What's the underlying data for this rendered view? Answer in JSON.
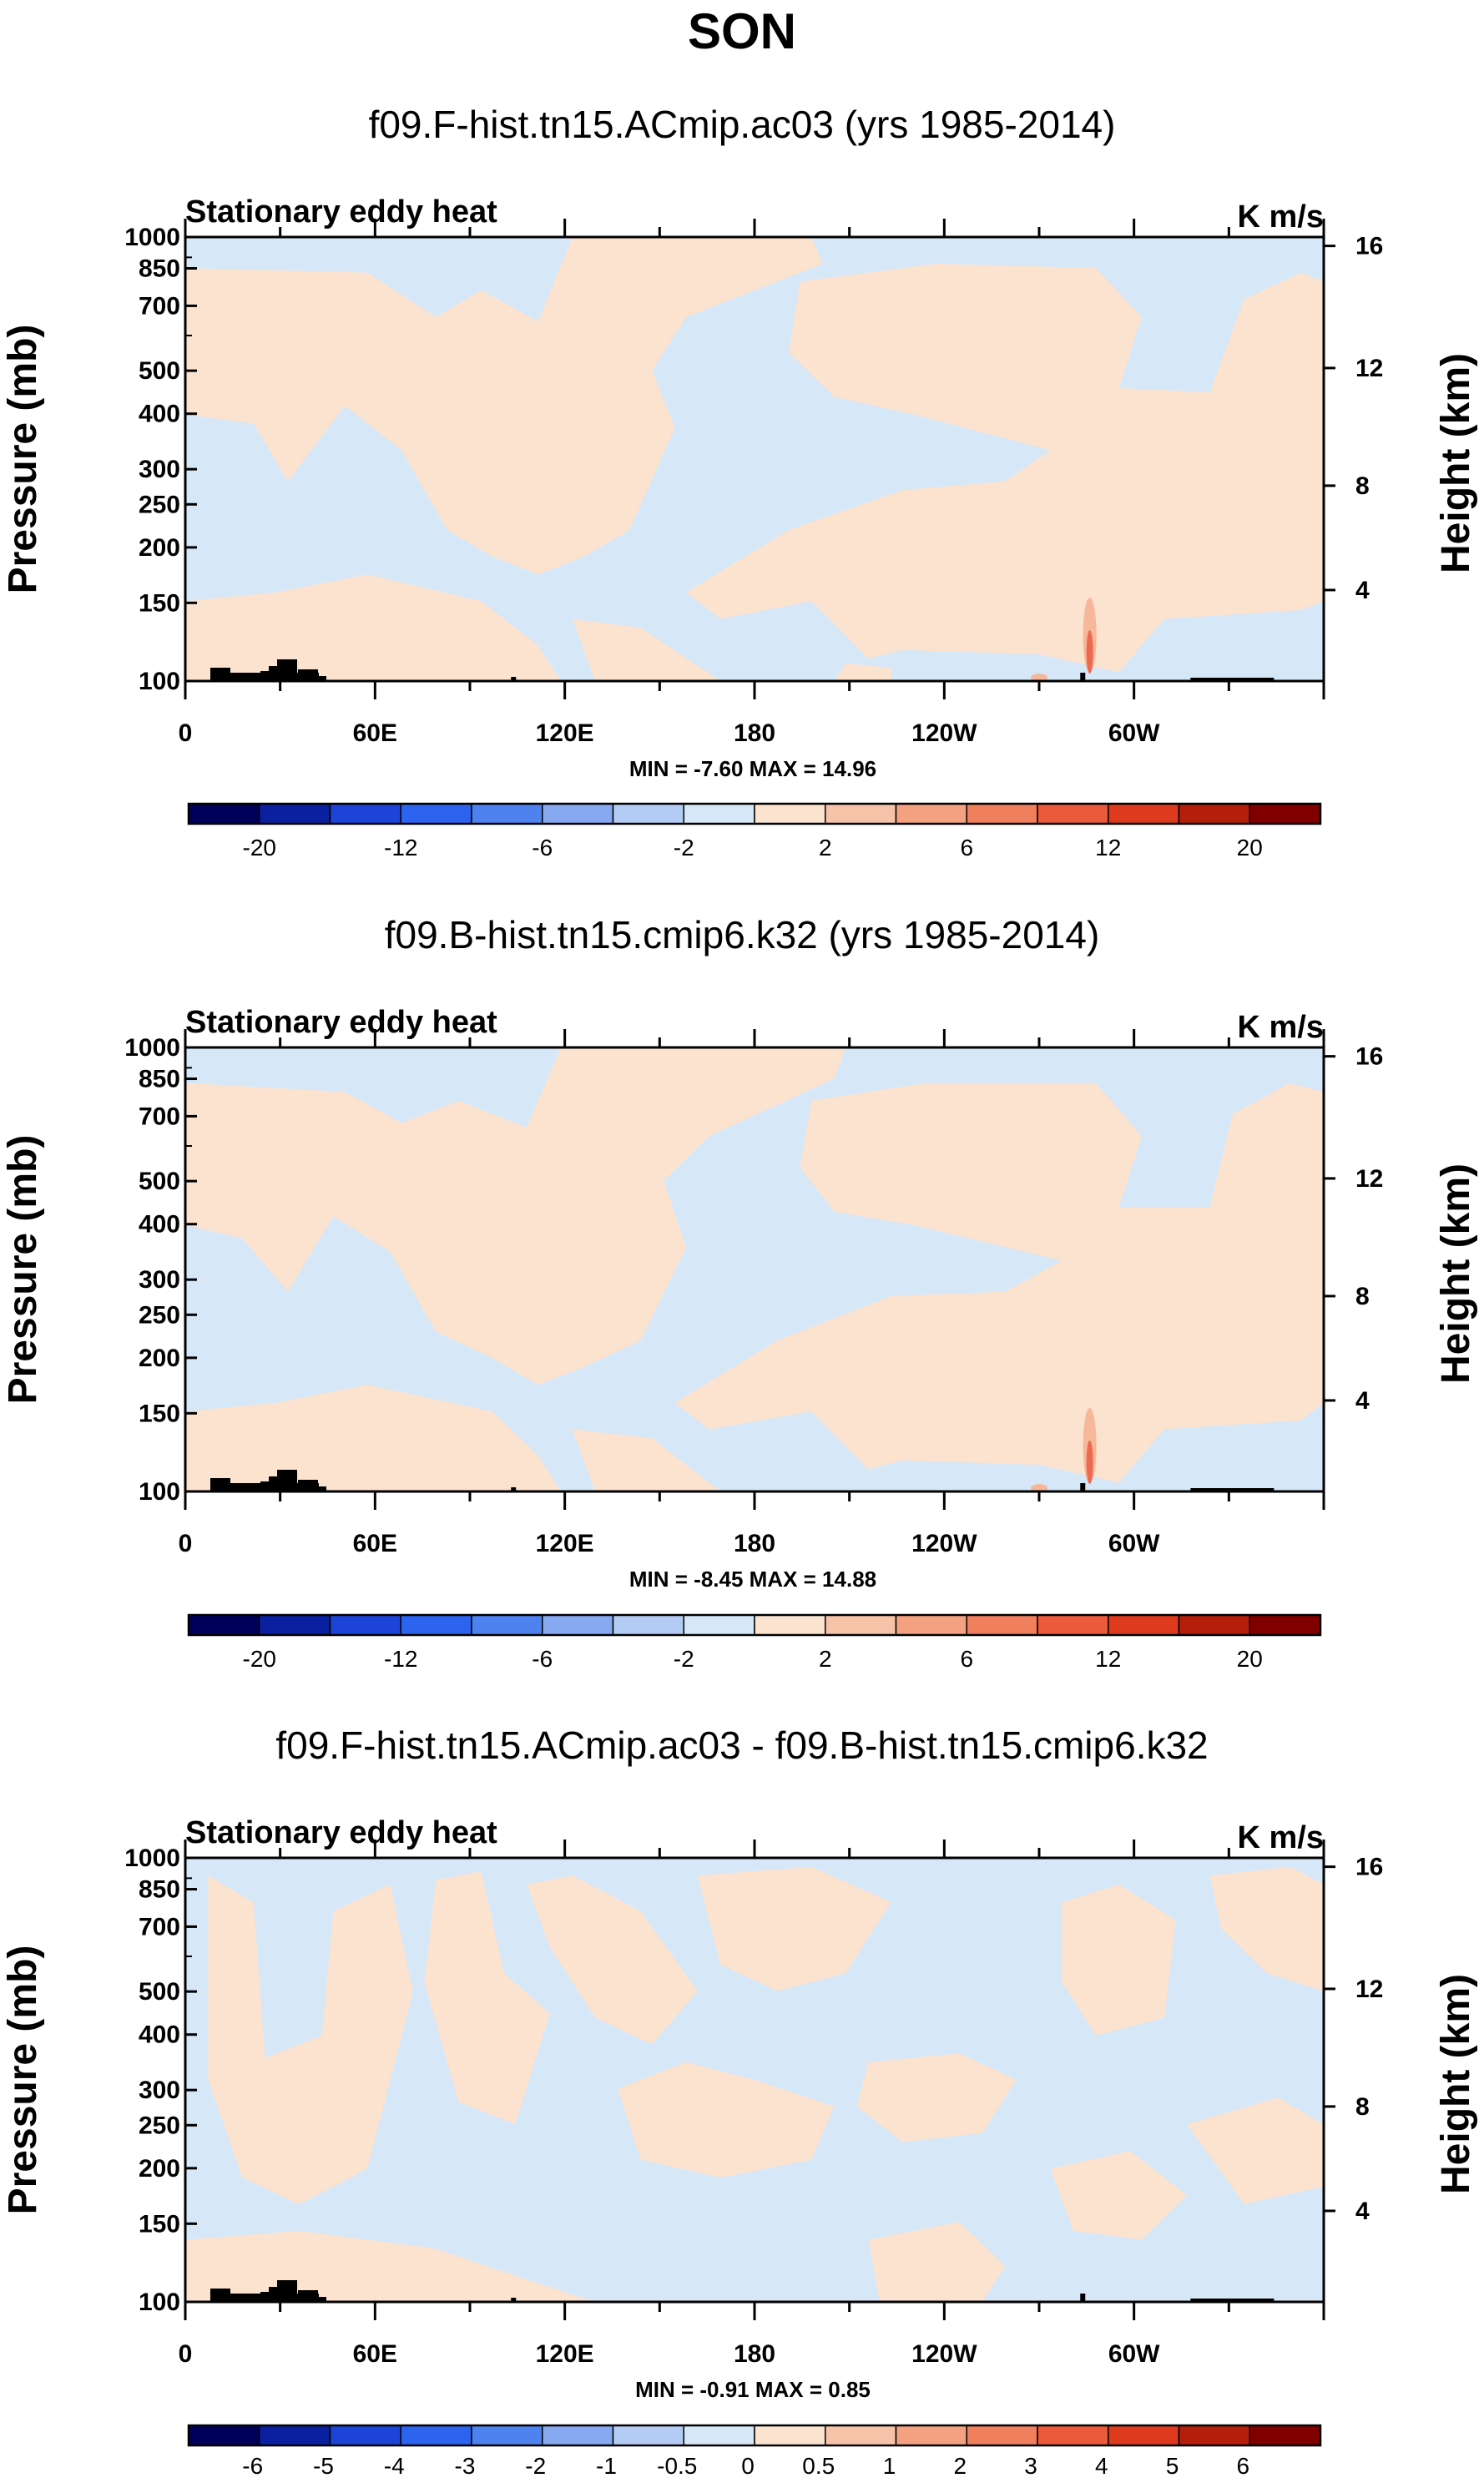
{
  "figure_title": "SON",
  "colors": {
    "blue_light": "#d6e7f8",
    "peach_light": "#fbe3cf",
    "peach_mid": "#f6b79a",
    "orange_red": "#ec6a4f",
    "topography": "#000000",
    "frame": "#000000"
  },
  "chart_data": [
    {
      "type": "heatmap",
      "title": "f09.F-hist.tn15.ACmip.ac03 (yrs 1985-2014)",
      "left_label": "Stationary eddy heat",
      "right_label": "K m/s",
      "ylabel": "Pressure (mb)",
      "ylabel_right": "Height (km)",
      "xlabel": "",
      "pressure_ticks": [
        "100",
        "150",
        "200",
        "250",
        "300",
        "400",
        "500",
        "700",
        "850",
        "1000"
      ],
      "height_ticks": [
        "16",
        "12",
        "8",
        "4"
      ],
      "x_ticks": [
        "0",
        "60E",
        "120E",
        "180",
        "120W",
        "60W"
      ],
      "x_tick_longitudes": [
        0,
        60,
        120,
        180,
        240,
        300
      ],
      "xlim": [
        0,
        360
      ],
      "ylim_mb": [
        1000,
        100
      ],
      "stats_text": "MIN = -7.60  MAX = 14.96",
      "min": -7.6,
      "max": 14.96,
      "colorbar_labels": [
        "-20",
        "-12",
        "-6",
        "-2",
        "2",
        "6",
        "12",
        "20"
      ],
      "colorbar_colors": [
        "#00005a",
        "#0b20a0",
        "#1c45d8",
        "#2c63ef",
        "#4d82ef",
        "#86a9f1",
        "#b4ccf5",
        "#d6e7f8",
        "#fbe3cf",
        "#f6c3a8",
        "#f3a181",
        "#f07f5d",
        "#ec5a3c",
        "#de3a1e",
        "#b41e0a",
        "#800000"
      ]
    },
    {
      "type": "heatmap",
      "title": "f09.B-hist.tn15.cmip6.k32 (yrs 1985-2014)",
      "left_label": "Stationary eddy heat",
      "right_label": "K m/s",
      "ylabel": "Pressure (mb)",
      "ylabel_right": "Height (km)",
      "xlabel": "",
      "pressure_ticks": [
        "100",
        "150",
        "200",
        "250",
        "300",
        "400",
        "500",
        "700",
        "850",
        "1000"
      ],
      "height_ticks": [
        "16",
        "12",
        "8",
        "4"
      ],
      "x_ticks": [
        "0",
        "60E",
        "120E",
        "180",
        "120W",
        "60W"
      ],
      "x_tick_longitudes": [
        0,
        60,
        120,
        180,
        240,
        300
      ],
      "xlim": [
        0,
        360
      ],
      "ylim_mb": [
        1000,
        100
      ],
      "stats_text": "MIN = -8.45  MAX = 14.88",
      "min": -8.45,
      "max": 14.88,
      "colorbar_labels": [
        "-20",
        "-12",
        "-6",
        "-2",
        "2",
        "6",
        "12",
        "20"
      ],
      "colorbar_colors": [
        "#00005a",
        "#0b20a0",
        "#1c45d8",
        "#2c63ef",
        "#4d82ef",
        "#86a9f1",
        "#b4ccf5",
        "#d6e7f8",
        "#fbe3cf",
        "#f6c3a8",
        "#f3a181",
        "#f07f5d",
        "#ec5a3c",
        "#de3a1e",
        "#b41e0a",
        "#800000"
      ]
    },
    {
      "type": "heatmap",
      "title": "f09.F-hist.tn15.ACmip.ac03 - f09.B-hist.tn15.cmip6.k32",
      "left_label": "Stationary eddy heat",
      "right_label": "K m/s",
      "ylabel": "Pressure (mb)",
      "ylabel_right": "Height (km)",
      "xlabel": "",
      "pressure_ticks": [
        "100",
        "150",
        "200",
        "250",
        "300",
        "400",
        "500",
        "700",
        "850",
        "1000"
      ],
      "height_ticks": [
        "16",
        "12",
        "8",
        "4"
      ],
      "x_ticks": [
        "0",
        "60E",
        "120E",
        "180",
        "120W",
        "60W"
      ],
      "x_tick_longitudes": [
        0,
        60,
        120,
        180,
        240,
        300
      ],
      "xlim": [
        0,
        360
      ],
      "ylim_mb": [
        1000,
        100
      ],
      "stats_text": "MIN = -0.91  MAX =  0.85",
      "min": -0.91,
      "max": 0.85,
      "colorbar_labels": [
        "-6",
        "-5",
        "-4",
        "-3",
        "-2",
        "-1",
        "-0.5",
        "0",
        "0.5",
        "1",
        "2",
        "3",
        "4",
        "5",
        "6"
      ],
      "colorbar_colors": [
        "#00005a",
        "#0b20a0",
        "#1c45d8",
        "#2c63ef",
        "#4d82ef",
        "#86a9f1",
        "#b4ccf5",
        "#d6e7f8",
        "#fbe3cf",
        "#f6c3a8",
        "#f3a181",
        "#f07f5d",
        "#ec5a3c",
        "#de3a1e",
        "#b41e0a",
        "#800000"
      ]
    }
  ]
}
